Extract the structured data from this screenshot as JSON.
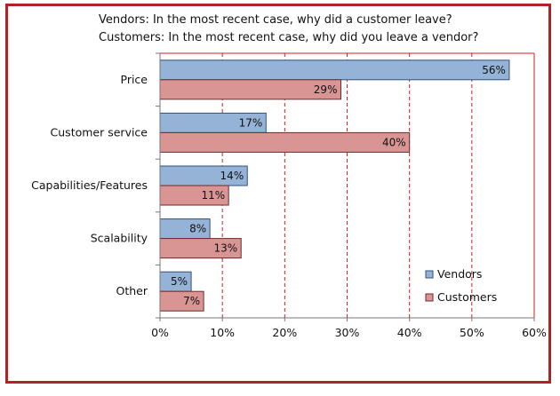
{
  "chart_data": {
    "type": "bar",
    "orientation": "horizontal",
    "title": "Vendors: In the most recent case, why did a customer leave?",
    "subtitle": "Customers: In the most recent case, why did you leave a vendor?",
    "categories": [
      "Price",
      "Customer service",
      "Capabilities/Features",
      "Scalability",
      "Other"
    ],
    "series": [
      {
        "name": "Vendors",
        "values": [
          56,
          17,
          14,
          8,
          5
        ],
        "labels": [
          "56%",
          "17%",
          "14%",
          "8%",
          "5%"
        ],
        "color": "#95b3d7",
        "border": "#31507e"
      },
      {
        "name": "Customers",
        "values": [
          29,
          40,
          11,
          13,
          7
        ],
        "labels": [
          "29%",
          "40%",
          "11%",
          "13%",
          "7%"
        ],
        "color": "#d99594",
        "border": "#6e2a2a"
      }
    ],
    "xlim": [
      0,
      60
    ],
    "ticks": [
      0,
      10,
      20,
      30,
      40,
      50,
      60
    ],
    "tick_labels": [
      "0%",
      "10%",
      "20%",
      "30%",
      "40%",
      "50%",
      "60%"
    ],
    "xlabel": "",
    "ylabel": "",
    "grid": "vertical dashed",
    "legend": "bottom-right",
    "colors": {
      "grid": "#cc1f1f",
      "axis": "#777777",
      "frame": "#b22222"
    }
  }
}
